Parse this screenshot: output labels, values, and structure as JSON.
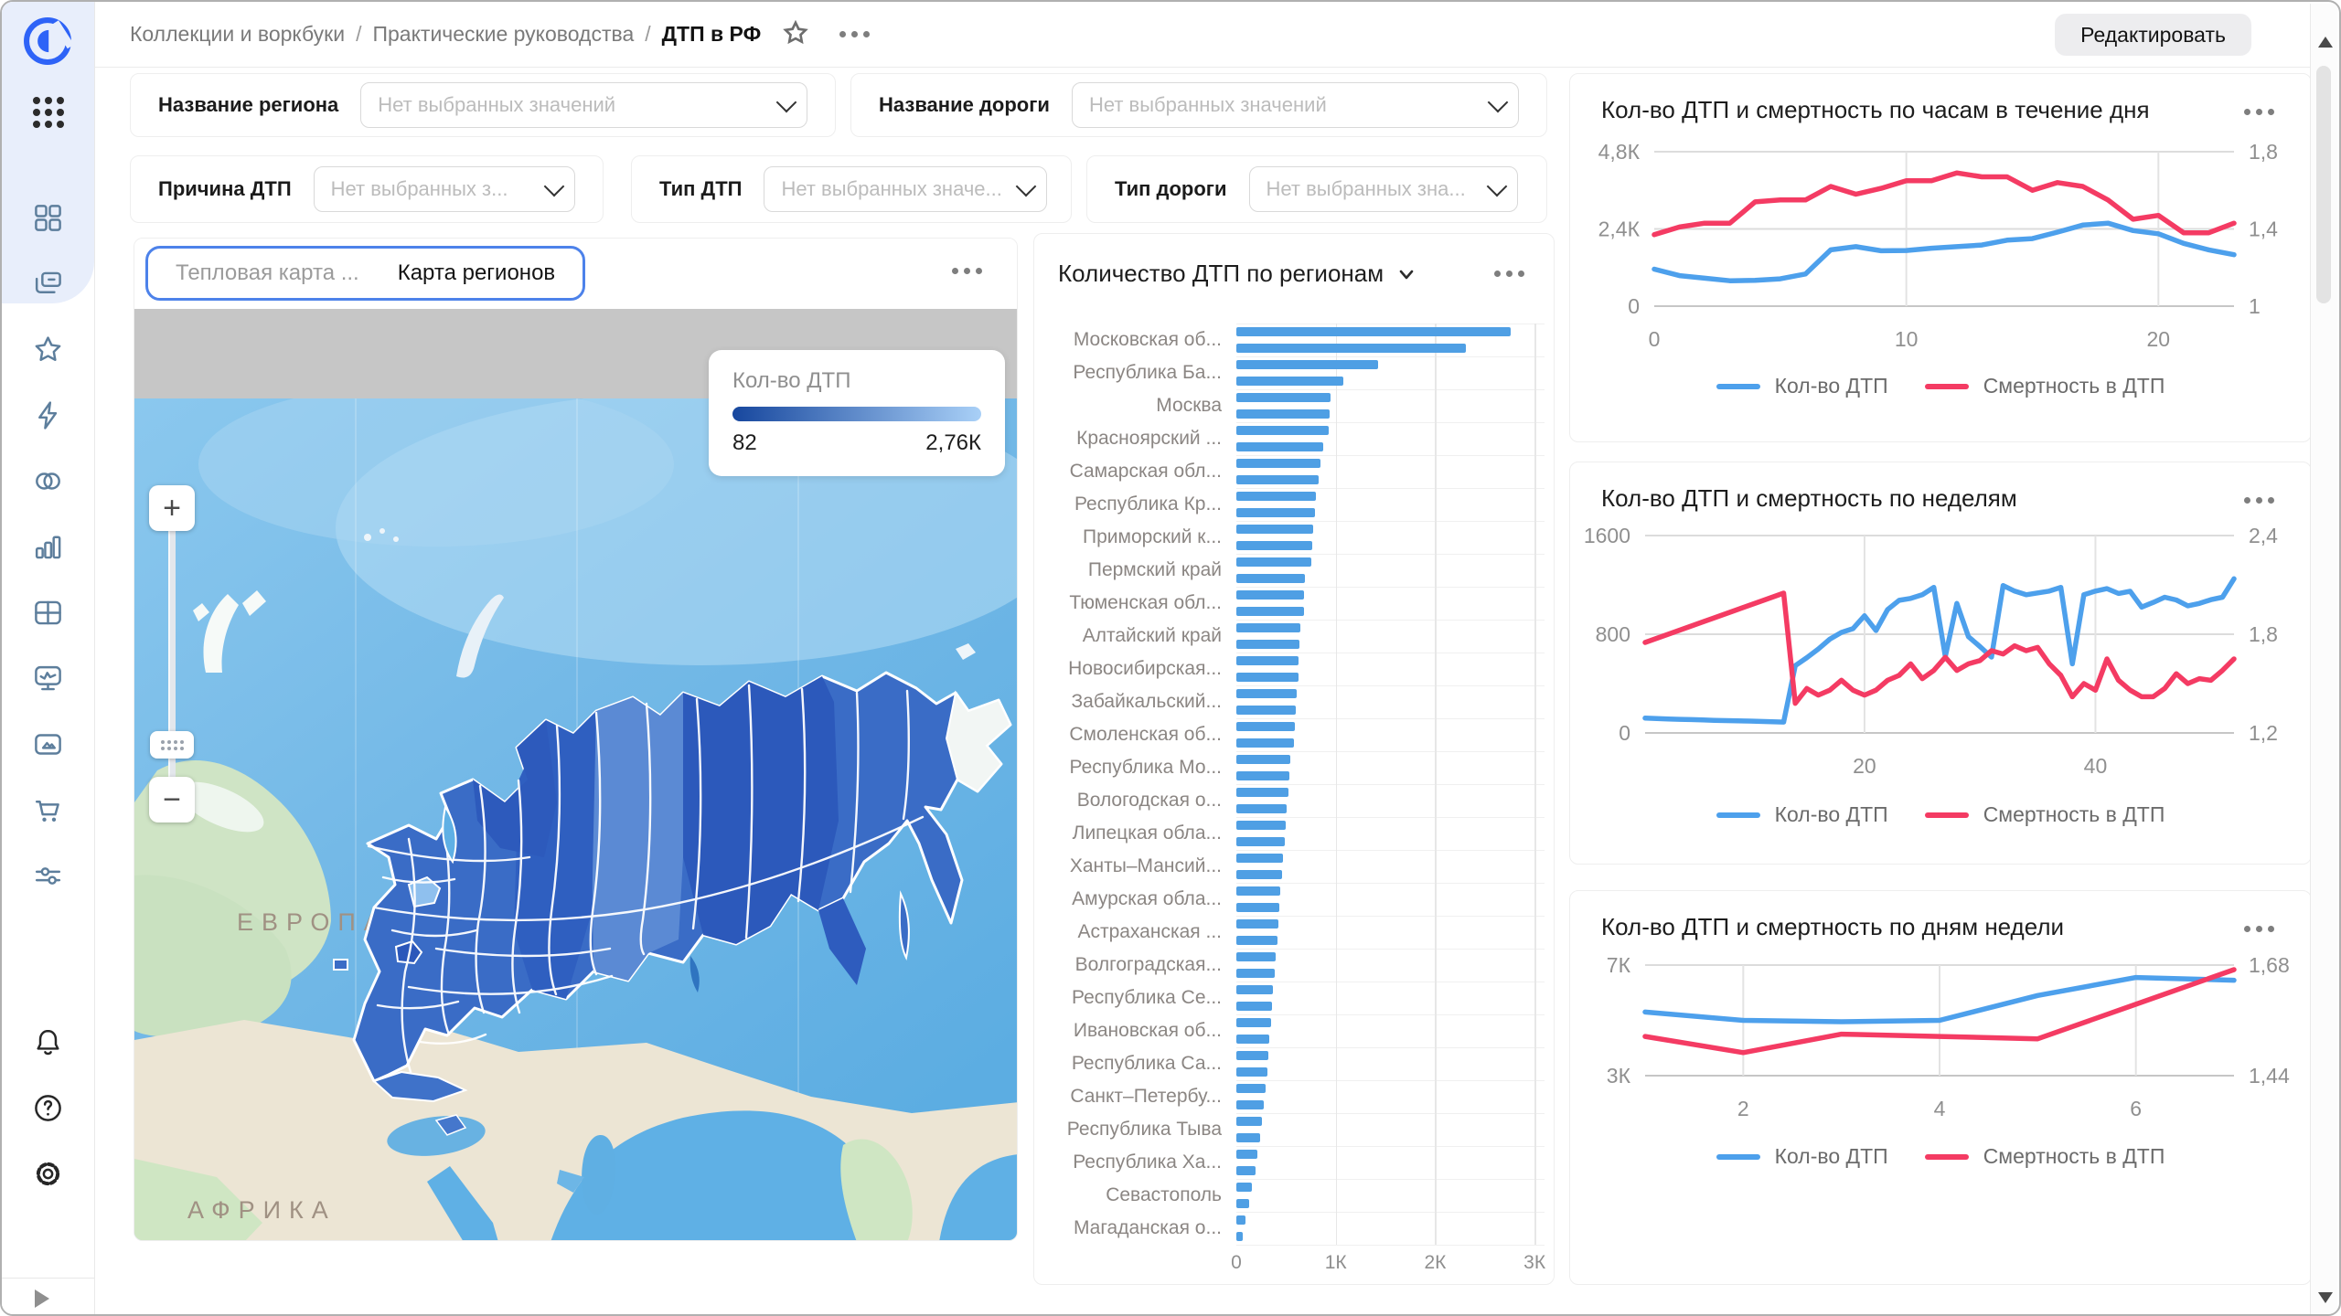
{
  "breadcrumb": {
    "items": [
      "Коллекции и воркбуки",
      "Практические руководства",
      "ДТП в РФ"
    ],
    "separator": "/"
  },
  "header": {
    "edit_button": "Редактировать"
  },
  "sidebar": {
    "icons": [
      "datalens-logo",
      "apps-grid",
      "widgets",
      "collections",
      "favorites",
      "connections",
      "datasets",
      "charts",
      "tables",
      "dashboards",
      "gallery",
      "marketplace",
      "services",
      "notifications",
      "help",
      "settings",
      "collapse"
    ]
  },
  "filters": [
    {
      "label": "Название региона",
      "placeholder": "Нет выбранных значений"
    },
    {
      "label": "Название дороги",
      "placeholder": "Нет выбранных значений"
    },
    {
      "label": "Причина ДТП",
      "placeholder": "Нет выбранных з..."
    },
    {
      "label": "Тип ДТП",
      "placeholder": "Нет выбранных значе..."
    },
    {
      "label": "Тип дороги",
      "placeholder": "Нет выбранных зна..."
    }
  ],
  "map": {
    "tabs": [
      {
        "label": "Тепловая карта ...",
        "active": false
      },
      {
        "label": "Карта регионов",
        "active": true
      }
    ],
    "legend": {
      "title": "Кол-во ДТП",
      "min": "82",
      "max": "2,76К",
      "gradient_from": "#17479e",
      "gradient_to": "#a9d0f7"
    },
    "labels": {
      "europe": "ЕВРОПА",
      "africa": "АФРИКА"
    },
    "zoom_in": "+",
    "zoom_out": "−"
  },
  "chart_data": [
    {
      "type": "bar",
      "orientation": "horizontal",
      "title": "Количество ДТП по регионам",
      "bar_color": "#4f9fe4",
      "categories": [
        "Московская об...",
        "Республика Ба...",
        "Москва",
        "Красноярский ...",
        "Самарская обл...",
        "Республика Кр...",
        "Приморский к...",
        "Пермский край",
        "Тюменская обл...",
        "Алтайский край",
        "Новосибирская...",
        "Забайкальский...",
        "Смоленская об...",
        "Республика Мо...",
        "Вологодская о...",
        "Липецкая обла...",
        "Ханты–Мансий...",
        "Амурская обла...",
        "Астраханская ...",
        "Волгоградская...",
        "Республика Се...",
        "Ивановская об...",
        "Республика Са...",
        "Санкт–Петербу...",
        "Республика Тыва",
        "Республика Ха...",
        "Севастополь",
        "Магаданская о..."
      ],
      "bars_per_label": 2,
      "values": [
        2760,
        2310,
        1430,
        1080,
        945,
        940,
        930,
        870,
        850,
        830,
        800,
        790,
        770,
        765,
        755,
        690,
        685,
        680,
        640,
        635,
        630,
        625,
        610,
        600,
        590,
        580,
        540,
        530,
        520,
        510,
        500,
        490,
        470,
        460,
        440,
        430,
        420,
        410,
        395,
        385,
        370,
        360,
        345,
        335,
        320,
        310,
        295,
        280,
        260,
        240,
        215,
        190,
        160,
        130,
        95,
        60
      ],
      "xlim": [
        0,
        3100
      ],
      "xticks": [
        0,
        1000,
        2000,
        3000
      ],
      "xtick_labels": [
        "0",
        "1К",
        "2К",
        "3К"
      ]
    },
    {
      "type": "line",
      "title": "Кол-во ДТП и смертность по часам в течение дня",
      "x": [
        0,
        1,
        2,
        3,
        4,
        5,
        6,
        7,
        8,
        9,
        10,
        11,
        12,
        13,
        14,
        15,
        16,
        17,
        18,
        19,
        20,
        21,
        22,
        23
      ],
      "xlim": [
        0,
        23
      ],
      "xticks": [
        0,
        10,
        20
      ],
      "xtick_labels": [
        "0",
        "10",
        "20"
      ],
      "left_axis": {
        "lim": [
          0,
          4800
        ],
        "ticks": [
          0,
          2400,
          4800
        ],
        "tick_labels": [
          "0",
          "2,4К",
          "4,8К"
        ]
      },
      "right_axis": {
        "lim": [
          1,
          1.8
        ],
        "ticks": [
          1,
          1.4,
          1.8
        ],
        "tick_labels": [
          "1",
          "1,4",
          "1,8"
        ]
      },
      "series": [
        {
          "name": "Кол-во ДТП",
          "axis": "left",
          "color": "#4da0ec",
          "values": [
            1150,
            950,
            870,
            790,
            800,
            850,
            1000,
            1750,
            1850,
            1720,
            1730,
            1800,
            1850,
            1900,
            2050,
            2100,
            2300,
            2520,
            2580,
            2350,
            2250,
            1950,
            1750,
            1600
          ]
        },
        {
          "name": "Смертность в ДТП",
          "axis": "right",
          "color": "#f43b63",
          "values": [
            1.37,
            1.41,
            1.43,
            1.43,
            1.54,
            1.55,
            1.55,
            1.62,
            1.58,
            1.61,
            1.65,
            1.65,
            1.69,
            1.67,
            1.67,
            1.6,
            1.64,
            1.62,
            1.55,
            1.45,
            1.47,
            1.38,
            1.38,
            1.43
          ]
        }
      ]
    },
    {
      "type": "line",
      "title": "Кол-во ДТП и смертность по неделям",
      "x": [
        1,
        2,
        3,
        4,
        5,
        6,
        7,
        8,
        9,
        10,
        11,
        12,
        13,
        14,
        15,
        16,
        17,
        18,
        19,
        20,
        21,
        22,
        23,
        24,
        25,
        26,
        27,
        28,
        29,
        30,
        31,
        32,
        33,
        34,
        35,
        36,
        37,
        38,
        39,
        40,
        41,
        42,
        43,
        44,
        45,
        46,
        47,
        48,
        49,
        50,
        51,
        52
      ],
      "xlim": [
        1,
        52
      ],
      "xticks": [
        20,
        40
      ],
      "xtick_labels": [
        "20",
        "40"
      ],
      "left_axis": {
        "lim": [
          0,
          1600
        ],
        "ticks": [
          0,
          800,
          1600
        ],
        "tick_labels": [
          "0",
          "800",
          "1600"
        ]
      },
      "right_axis": {
        "lim": [
          1.2,
          2.4
        ],
        "ticks": [
          1.2,
          1.8,
          2.4
        ],
        "tick_labels": [
          "1,2",
          "1,8",
          "2,4"
        ]
      },
      "series": [
        {
          "name": "Кол-во ДТП",
          "axis": "left",
          "color": "#4da0ec",
          "values": [
            120,
            116,
            113,
            110,
            108,
            105,
            102,
            100,
            98,
            96,
            93,
            91,
            88,
            545,
            610,
            680,
            760,
            815,
            845,
            950,
            830,
            1000,
            1075,
            1090,
            1120,
            1180,
            620,
            1050,
            780,
            700,
            615,
            1195,
            1150,
            1120,
            1135,
            1150,
            1180,
            560,
            1120,
            1150,
            1170,
            1130,
            1148,
            1020,
            1058,
            1100,
            1078,
            1030,
            1050,
            1080,
            1100,
            1250
          ]
        },
        {
          "name": "Смертность в ДТП",
          "axis": "right",
          "color": "#f43b63",
          "values": [
            1.75,
            1.775,
            1.8,
            1.825,
            1.85,
            1.875,
            1.9,
            1.925,
            1.95,
            1.975,
            2.0,
            2.025,
            2.05,
            1.38,
            1.47,
            1.43,
            1.46,
            1.52,
            1.46,
            1.43,
            1.46,
            1.52,
            1.55,
            1.62,
            1.53,
            1.58,
            1.66,
            1.58,
            1.62,
            1.64,
            1.7,
            1.68,
            1.73,
            1.7,
            1.72,
            1.62,
            1.55,
            1.42,
            1.5,
            1.46,
            1.65,
            1.52,
            1.46,
            1.42,
            1.42,
            1.47,
            1.56,
            1.5,
            1.53,
            1.52,
            1.58,
            1.65
          ]
        }
      ]
    },
    {
      "type": "line",
      "title": "Кол-во ДТП и смертность по дням недели",
      "x": [
        1,
        2,
        3,
        4,
        5,
        6,
        7
      ],
      "xlim": [
        1,
        7
      ],
      "xticks": [
        2,
        4,
        6
      ],
      "xtick_labels": [
        "2",
        "4",
        "6"
      ],
      "left_axis": {
        "lim": [
          3000,
          7000
        ],
        "ticks": [
          3000,
          7000
        ],
        "tick_labels": [
          "3К",
          "7К"
        ]
      },
      "right_axis": {
        "lim": [
          1.44,
          1.68
        ],
        "ticks": [
          1.44,
          1.68
        ],
        "tick_labels": [
          "1,44",
          "1,68"
        ]
      },
      "series": [
        {
          "name": "Кол-во ДТП",
          "axis": "left",
          "color": "#4da0ec",
          "values": [
            5300,
            5000,
            4950,
            5000,
            5900,
            6550,
            6450
          ]
        },
        {
          "name": "Смертность в ДТП",
          "axis": "right",
          "color": "#f43b63",
          "values": [
            1.525,
            1.49,
            1.53,
            1.525,
            1.52,
            1.595,
            1.67
          ]
        }
      ]
    }
  ]
}
